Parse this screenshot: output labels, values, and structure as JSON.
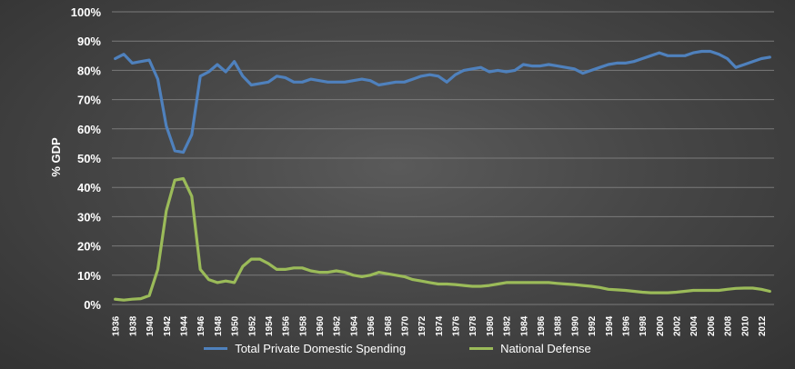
{
  "chart_data": {
    "type": "line",
    "title": "",
    "xlabel": "",
    "ylabel": "% GDP",
    "ylim": [
      0,
      100
    ],
    "yticks": [
      "0%",
      "10%",
      "20%",
      "30%",
      "40%",
      "50%",
      "60%",
      "70%",
      "80%",
      "90%",
      "100%"
    ],
    "xticks": [
      "1936",
      "1938",
      "1940",
      "1942",
      "1944",
      "1946",
      "1948",
      "1950",
      "1952",
      "1954",
      "1956",
      "1958",
      "1960",
      "1962",
      "1964",
      "1966",
      "1968",
      "1970",
      "1972",
      "1974",
      "1976",
      "1978",
      "1980",
      "1982",
      "1984",
      "1986",
      "1988",
      "1990",
      "1992",
      "1994",
      "1996",
      "1998",
      "2000",
      "2002",
      "2004",
      "2006",
      "2008",
      "2010",
      "2012"
    ],
    "x": [
      1936,
      1937,
      1938,
      1939,
      1940,
      1941,
      1942,
      1943,
      1944,
      1945,
      1946,
      1947,
      1948,
      1949,
      1950,
      1951,
      1952,
      1953,
      1954,
      1955,
      1956,
      1957,
      1958,
      1959,
      1960,
      1961,
      1962,
      1963,
      1964,
      1965,
      1966,
      1967,
      1968,
      1969,
      1970,
      1971,
      1972,
      1973,
      1974,
      1975,
      1976,
      1977,
      1978,
      1979,
      1980,
      1981,
      1982,
      1983,
      1984,
      1985,
      1986,
      1987,
      1988,
      1989,
      1990,
      1991,
      1992,
      1993,
      1994,
      1995,
      1996,
      1997,
      1998,
      1999,
      2000,
      2001,
      2002,
      2003,
      2004,
      2005,
      2006,
      2007,
      2008,
      2009,
      2010,
      2011,
      2012,
      2013
    ],
    "series": [
      {
        "name": "Total Private Domestic Spending",
        "color": "#4f81bd",
        "values": [
          84,
          85.5,
          82.5,
          83,
          83.5,
          77,
          61,
          52.5,
          52,
          58,
          78,
          79.5,
          82,
          79.5,
          83,
          78,
          75,
          75.5,
          76,
          78,
          77.5,
          76,
          76,
          77,
          76.5,
          76,
          76,
          76,
          76.5,
          77,
          76.5,
          75,
          75.5,
          76,
          76,
          77,
          78,
          78.5,
          78,
          76,
          78.5,
          80,
          80.5,
          81,
          79.5,
          80,
          79.5,
          80,
          82,
          81.5,
          81.5,
          82,
          81.5,
          81,
          80.5,
          79,
          80,
          81,
          82,
          82.5,
          82.5,
          83,
          84,
          85,
          86,
          85,
          85,
          85,
          86,
          86.5,
          86.5,
          85.5,
          84,
          81,
          82,
          83,
          84,
          84.5
        ]
      },
      {
        "name": "National Defense",
        "color": "#9bbb59",
        "values": [
          1.8,
          1.5,
          1.8,
          2,
          3,
          12,
          32,
          42.5,
          43,
          37,
          12,
          8.5,
          7.5,
          8,
          7.5,
          13,
          15.5,
          15.5,
          14,
          12,
          12,
          12.5,
          12.5,
          11.5,
          11,
          11,
          11.5,
          11,
          10,
          9.5,
          10,
          11,
          10.5,
          10,
          9.5,
          8.5,
          8,
          7.5,
          7,
          7,
          6.8,
          6.5,
          6.2,
          6.2,
          6.5,
          7,
          7.5,
          7.5,
          7.5,
          7.5,
          7.5,
          7.5,
          7.2,
          7,
          6.8,
          6.5,
          6.2,
          5.8,
          5.2,
          5,
          4.8,
          4.5,
          4.2,
          4,
          4,
          4,
          4.2,
          4.5,
          4.8,
          4.8,
          4.8,
          4.8,
          5.2,
          5.5,
          5.6,
          5.6,
          5.2,
          4.5
        ]
      }
    ],
    "legend": "bottom"
  }
}
